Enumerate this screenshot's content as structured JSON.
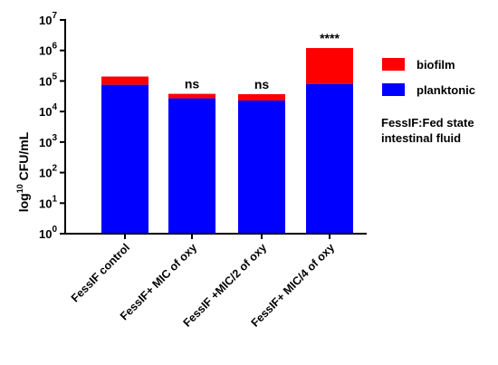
{
  "chart_data": {
    "type": "bar",
    "stacked": true,
    "log_scale": true,
    "ylabel_prefix": "log",
    "ylabel_sup": "10",
    "ylabel_suffix": " CFU/mL",
    "ylim": [
      1,
      10000000
    ],
    "yticks": [
      {
        "base": "10",
        "exp": "0"
      },
      {
        "base": "10",
        "exp": "1"
      },
      {
        "base": "10",
        "exp": "2"
      },
      {
        "base": "10",
        "exp": "3"
      },
      {
        "base": "10",
        "exp": "4"
      },
      {
        "base": "10",
        "exp": "5"
      },
      {
        "base": "10",
        "exp": "6"
      },
      {
        "base": "10",
        "exp": "7"
      }
    ],
    "categories": [
      "FessIF control",
      "FessIF+ MIC of oxy",
      "FessIF +MIC/2 of oxy",
      "FessIF+ MIC/4 of oxy"
    ],
    "series": [
      {
        "name": "planktonic",
        "color": "#0000ff",
        "values": [
          75000,
          27000,
          23000,
          80000
        ]
      },
      {
        "name": "biofilm",
        "color": "#ff0000",
        "values": [
          65000,
          11000,
          14000,
          1120000
        ]
      }
    ],
    "significance": [
      "",
      "ns",
      "ns",
      "****"
    ],
    "annotation": [
      "FessIF:Fed state",
      "intestinal fluid"
    ],
    "grid": false,
    "legend_position": "right"
  }
}
